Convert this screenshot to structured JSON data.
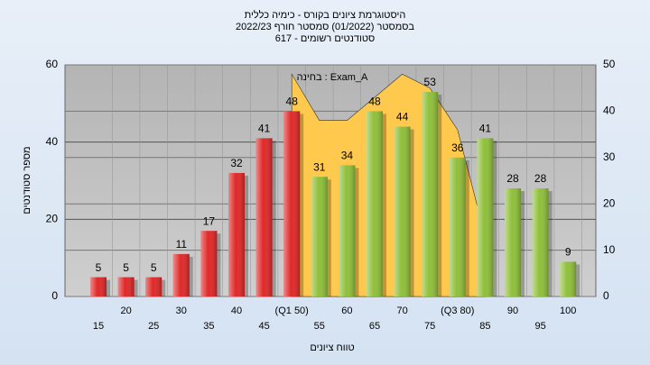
{
  "chart_data": {
    "type": "bar",
    "title": "היסטוגרמת ציונים בקורס - כימיה כללית",
    "subtitle": "בסמסטר (01/2022)  סמסטר חורף 2022/23",
    "subtitle2": "סטודנטים רשומים - 617",
    "annotation": "בחינה : Exam_A",
    "x_label": "טווח ציונים",
    "y_label": "מספר סטודנטים",
    "categories": [
      "15",
      "20",
      "25",
      "30",
      "35",
      "40",
      "45",
      "(Q1 50)",
      "55",
      "60",
      "65",
      "70",
      "75",
      "(Q3 80)",
      "85",
      "90",
      "95",
      "100"
    ],
    "series": [
      {
        "type": "bar",
        "values": [
          5,
          5,
          5,
          11,
          17,
          32,
          41,
          48,
          31,
          34,
          48,
          44,
          53,
          36,
          41,
          28,
          28,
          9
        ],
        "colors": [
          "#e02828",
          "#e02828",
          "#e02828",
          "#e02828",
          "#e02828",
          "#e02828",
          "#e02828",
          "#e02828",
          "#8fbf3a",
          "#8fbf3a",
          "#8fbf3a",
          "#8fbf3a",
          "#8fbf3a",
          "#8fbf3a",
          "#8fbf3a",
          "#8fbf3a",
          "#8fbf3a",
          "#8fbf3a"
        ]
      },
      {
        "type": "area",
        "axis": "y2",
        "color": "#ffc94d",
        "values": [
          null,
          null,
          null,
          null,
          null,
          null,
          null,
          48,
          38,
          38,
          43,
          48,
          45,
          36,
          13,
          null,
          null,
          null
        ]
      }
    ],
    "ylim": [
      0,
      60
    ],
    "yticks": [
      0,
      20,
      40,
      60
    ],
    "y2lim": [
      0,
      50
    ],
    "y2ticks": [
      0,
      10,
      20,
      30,
      40,
      50
    ],
    "grid": true
  }
}
